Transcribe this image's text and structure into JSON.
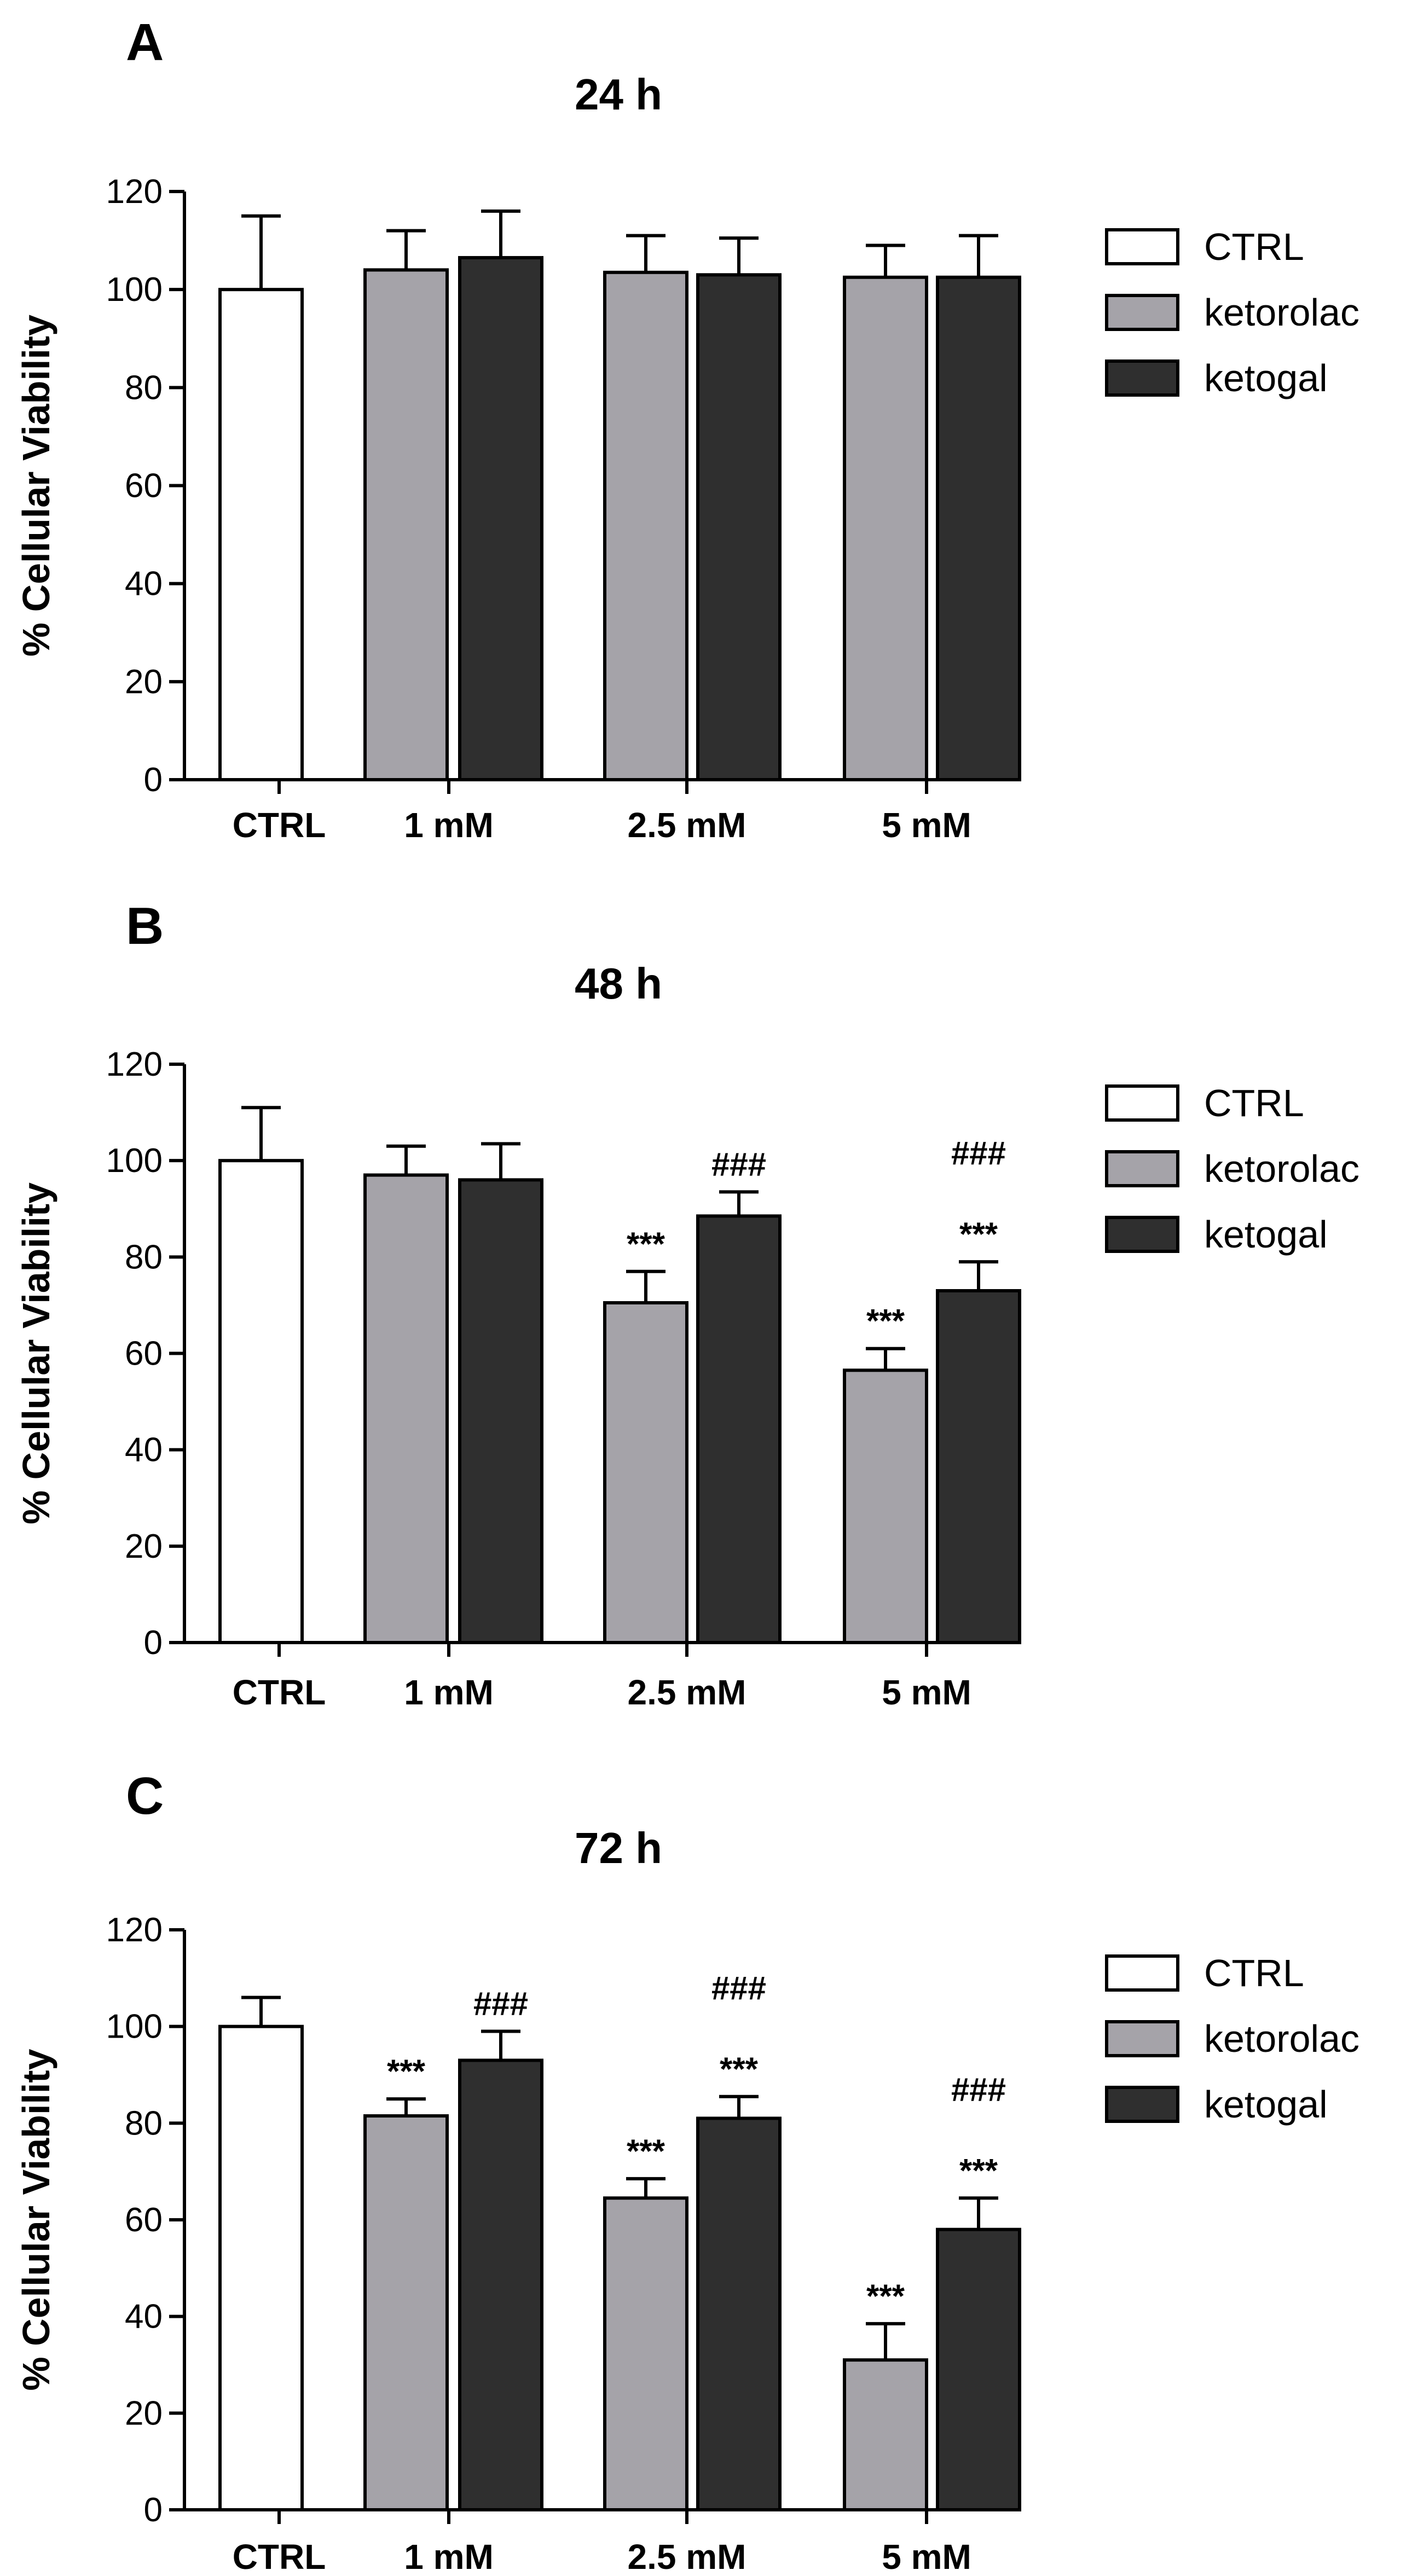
{
  "colors": {
    "CTRL": "#ffffff",
    "ketorolac": "#a5a3a9",
    "ketogal": "#2f2f2f",
    "stroke": "#000000"
  },
  "chart_data": [
    {
      "type": "bar",
      "panel": "A",
      "title": "24 h",
      "ylabel": "% Cellular Viability",
      "xlabel": "",
      "ylim": [
        0,
        120
      ],
      "yticks": [
        0,
        20,
        40,
        60,
        80,
        100,
        120
      ],
      "grid": false,
      "legend_position": "right",
      "categories": [
        "CTRL",
        "1 mM",
        "2.5 mM",
        "5 mM"
      ],
      "series": [
        {
          "name": "CTRL",
          "values": [
            100,
            null,
            null,
            null
          ],
          "errors": [
            15,
            null,
            null,
            null
          ],
          "annotations": [
            null,
            null,
            null,
            null
          ],
          "annotations2": [
            null,
            null,
            null,
            null
          ]
        },
        {
          "name": "ketorolac",
          "values": [
            null,
            104,
            103.5,
            102.5
          ],
          "errors": [
            null,
            8,
            7.5,
            6.5
          ],
          "annotations": [
            null,
            null,
            null,
            null
          ],
          "annotations2": [
            null,
            null,
            null,
            null
          ]
        },
        {
          "name": "ketogal",
          "values": [
            null,
            106.5,
            103,
            102.5
          ],
          "errors": [
            null,
            9.5,
            7.5,
            8.5
          ],
          "annotations": [
            null,
            null,
            null,
            null
          ],
          "annotations2": [
            null,
            null,
            null,
            null
          ]
        }
      ]
    },
    {
      "type": "bar",
      "panel": "B",
      "title": "48 h",
      "ylabel": "% Cellular Viability",
      "xlabel": "",
      "ylim": [
        0,
        120
      ],
      "yticks": [
        0,
        20,
        40,
        60,
        80,
        100,
        120
      ],
      "grid": false,
      "legend_position": "right",
      "categories": [
        "CTRL",
        "1 mM",
        "2.5 mM",
        "5 mM"
      ],
      "series": [
        {
          "name": "CTRL",
          "values": [
            100,
            null,
            null,
            null
          ],
          "errors": [
            11,
            null,
            null,
            null
          ],
          "annotations": [
            null,
            null,
            null,
            null
          ],
          "annotations2": [
            null,
            null,
            null,
            null
          ]
        },
        {
          "name": "ketorolac",
          "values": [
            null,
            97,
            70.5,
            56.5
          ],
          "errors": [
            null,
            6,
            6.5,
            4.5
          ],
          "annotations": [
            null,
            null,
            "***",
            "***"
          ],
          "annotations2": [
            null,
            null,
            null,
            null
          ]
        },
        {
          "name": "ketogal",
          "values": [
            null,
            96,
            88.5,
            73
          ],
          "errors": [
            null,
            7.5,
            5,
            6
          ],
          "annotations": [
            null,
            null,
            "###",
            "***"
          ],
          "annotations2": [
            null,
            null,
            null,
            "###"
          ]
        }
      ]
    },
    {
      "type": "bar",
      "panel": "C",
      "title": "72 h",
      "ylabel": "% Cellular Viability",
      "xlabel": "",
      "ylim": [
        0,
        120
      ],
      "yticks": [
        0,
        20,
        40,
        60,
        80,
        100,
        120
      ],
      "grid": false,
      "legend_position": "right",
      "categories": [
        "CTRL",
        "1 mM",
        "2.5 mM",
        "5 mM"
      ],
      "series": [
        {
          "name": "CTRL",
          "values": [
            100,
            null,
            null,
            null
          ],
          "errors": [
            6,
            null,
            null,
            null
          ],
          "annotations": [
            null,
            null,
            null,
            null
          ],
          "annotations2": [
            null,
            null,
            null,
            null
          ]
        },
        {
          "name": "ketorolac",
          "values": [
            null,
            81.5,
            64.5,
            31
          ],
          "errors": [
            null,
            3.5,
            4,
            7.5
          ],
          "annotations": [
            null,
            "***",
            "***",
            "***"
          ],
          "annotations2": [
            null,
            null,
            null,
            null
          ]
        },
        {
          "name": "ketogal",
          "values": [
            null,
            93,
            81,
            58
          ],
          "errors": [
            null,
            6,
            4.5,
            6.5
          ],
          "annotations": [
            null,
            "###",
            "***",
            "***"
          ],
          "annotations2": [
            null,
            null,
            "###",
            "###"
          ]
        }
      ]
    }
  ]
}
